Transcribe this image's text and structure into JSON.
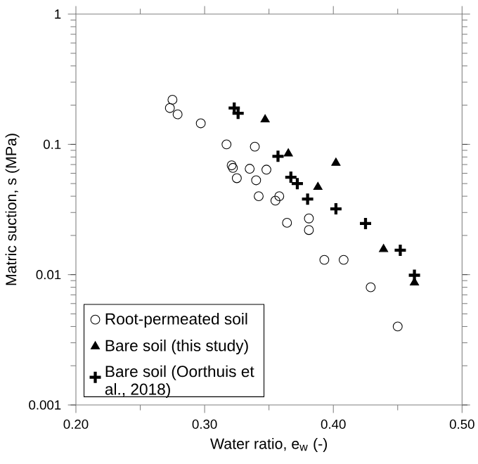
{
  "chart_data": {
    "type": "scatter",
    "xlabel": "Water ratio, e$_{w}$ (-)",
    "ylabel": "Matric suction, s (MPa)",
    "log": "y",
    "grid": false,
    "legend": "bottom left",
    "xlim": [
      0.2,
      0.5
    ],
    "ylim": [
      0.001,
      1
    ],
    "xticks": [
      {
        "value": 0.2,
        "label": "0.20"
      },
      {
        "value": 0.3,
        "label": "0.30"
      },
      {
        "value": 0.4,
        "label": "0.40"
      },
      {
        "value": 0.5,
        "label": "0.50"
      }
    ],
    "yticks": [
      0.001,
      0.01,
      0.1,
      1
    ],
    "series": [
      {
        "name": "Root-permeated soil",
        "color": "#000000",
        "marker": "circle",
        "x": [
          0.275,
          0.273,
          0.279,
          0.297,
          0.317,
          0.339,
          0.321,
          0.322,
          0.325,
          0.335,
          0.34,
          0.348,
          0.342,
          0.358,
          0.355,
          0.364,
          0.381,
          0.381,
          0.393,
          0.408,
          0.429,
          0.45
        ],
        "values": [
          0.22,
          0.19,
          0.17,
          0.145,
          0.1,
          0.096,
          0.069,
          0.066,
          0.055,
          0.065,
          0.053,
          0.064,
          0.04,
          0.04,
          0.037,
          0.025,
          0.027,
          0.022,
          0.013,
          0.013,
          0.008,
          0.004
        ]
      },
      {
        "name": "Bare soil (this study)",
        "color": "#000000",
        "marker": "triangle",
        "x": [
          0.347,
          0.365,
          0.402,
          0.388,
          0.439,
          0.463
        ],
        "values": [
          0.155,
          0.085,
          0.072,
          0.047,
          0.0157,
          0.0087
        ]
      },
      {
        "name": "Bare soil (Oorthuis et al., 2018)",
        "color": "#000000",
        "marker": "cross",
        "x": [
          0.323,
          0.326,
          0.357,
          0.367,
          0.372,
          0.38,
          0.402,
          0.425,
          0.452,
          0.463
        ],
        "values": [
          0.19,
          0.173,
          0.081,
          0.056,
          0.05,
          0.038,
          0.032,
          0.0247,
          0.0154,
          0.0099
        ]
      }
    ]
  }
}
